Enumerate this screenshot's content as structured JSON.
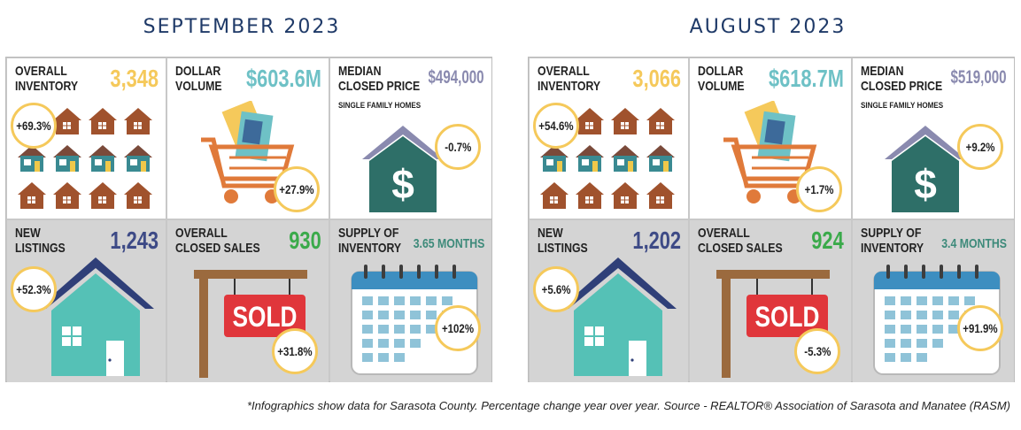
{
  "colors": {
    "title": "#1f3a68",
    "inventory_value": "#f5c95b",
    "dollar_value": "#6ec1c6",
    "median_value": "#8a8aaf",
    "listings_value": "#3d4a86",
    "sales_value": "#3aaa4a",
    "supply_value": "#3d8a7a",
    "badge_border": "#f5c95b",
    "house_brown": "#a0522d",
    "house_teal": "#3a8a92",
    "teal_house": "#55c1b6",
    "roof_navy": "#2f3f78",
    "sold_red": "#e0363b"
  },
  "footnote": "*Infographics show data for Sarasota County. Percentage change year over year. Source - REALTOR® Association of Sarasota and Manatee (RASM)",
  "panels": [
    {
      "title": "SEPTEMBER 2023",
      "inventory": {
        "label_1": "OVERALL",
        "label_2": "INVENTORY",
        "value": "3,348",
        "change": "+69.3%",
        "icon": "houses-grid-icon"
      },
      "dollar": {
        "label_1": "DOLLAR",
        "label_2": "VOLUME",
        "value": "$603.6M",
        "change": "+27.9%",
        "icon": "shopping-cart-icon"
      },
      "median": {
        "label_1": "MEDIAN",
        "label_2": "CLOSED PRICE",
        "note": "SINGLE FAMILY HOMES",
        "value": "$494,000",
        "change": "-0.7%",
        "icon": "house-dollar-icon"
      },
      "listings": {
        "label_1": "NEW",
        "label_2": "LISTINGS",
        "value": "1,243",
        "change": "+52.3%",
        "icon": "house-icon"
      },
      "sales": {
        "label_1": "OVERALL",
        "label_2": "CLOSED SALES",
        "value": "930",
        "change": "+31.8%",
        "sign_text": "SOLD",
        "icon": "sold-sign-icon"
      },
      "supply": {
        "label_1": "SUPPLY OF",
        "label_2": "INVENTORY",
        "value": "3.65 MONTHS",
        "change": "+102%",
        "icon": "calendar-icon"
      }
    },
    {
      "title": "AUGUST 2023",
      "inventory": {
        "label_1": "OVERALL",
        "label_2": "INVENTORY",
        "value": "3,066",
        "change": "+54.6%",
        "icon": "houses-grid-icon"
      },
      "dollar": {
        "label_1": "DOLLAR",
        "label_2": "VOLUME",
        "value": "$618.7M",
        "change": "+1.7%",
        "icon": "shopping-cart-icon"
      },
      "median": {
        "label_1": "MEDIAN",
        "label_2": "CLOSED PRICE",
        "note": "SINGLE FAMILY HOMES",
        "value": "$519,000",
        "change": "+9.2%",
        "icon": "house-dollar-icon"
      },
      "listings": {
        "label_1": "NEW",
        "label_2": "LISTINGS",
        "value": "1,202",
        "change": "+5.6%",
        "icon": "house-icon"
      },
      "sales": {
        "label_1": "OVERALL",
        "label_2": "CLOSED SALES",
        "value": "924",
        "change": "-5.3%",
        "sign_text": "SOLD",
        "icon": "sold-sign-icon"
      },
      "supply": {
        "label_1": "SUPPLY OF",
        "label_2": "INVENTORY",
        "value": "3.4 MONTHS",
        "change": "+91.9%",
        "icon": "calendar-icon"
      }
    }
  ]
}
